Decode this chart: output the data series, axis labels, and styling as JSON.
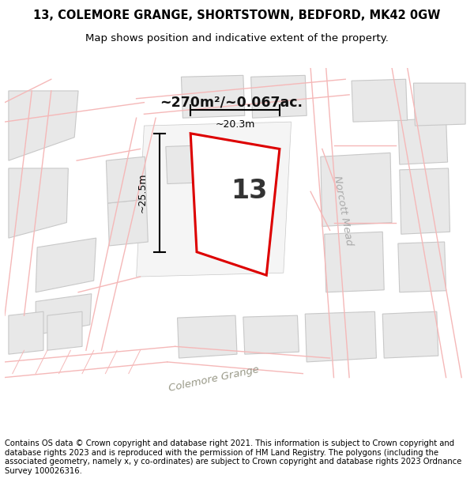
{
  "title": "13, COLEMORE GRANGE, SHORTSTOWN, BEDFORD, MK42 0GW",
  "subtitle": "Map shows position and indicative extent of the property.",
  "footer": "Contains OS data © Crown copyright and database right 2021. This information is subject to Crown copyright and database rights 2023 and is reproduced with the permission of HM Land Registry. The polygons (including the associated geometry, namely x, y co-ordinates) are subject to Crown copyright and database rights 2023 Ordnance Survey 100026316.",
  "map_bg": "#ffffff",
  "road_outline_color": "#f5b8b8",
  "building_fill": "#e8e8e8",
  "building_outline": "#c8c8c8",
  "plot_outline_color": "#dd0000",
  "street_label": "Colemore Grange",
  "street_label2": "Norcott Mead",
  "area_label": "~270m²/~0.067ac.",
  "number_label": "13",
  "dim1_label": "~25.5m",
  "dim2_label": "~20.3m",
  "title_fontsize": 10.5,
  "subtitle_fontsize": 9.5,
  "footer_fontsize": 7.2,
  "map_border_color": "#cccccc"
}
